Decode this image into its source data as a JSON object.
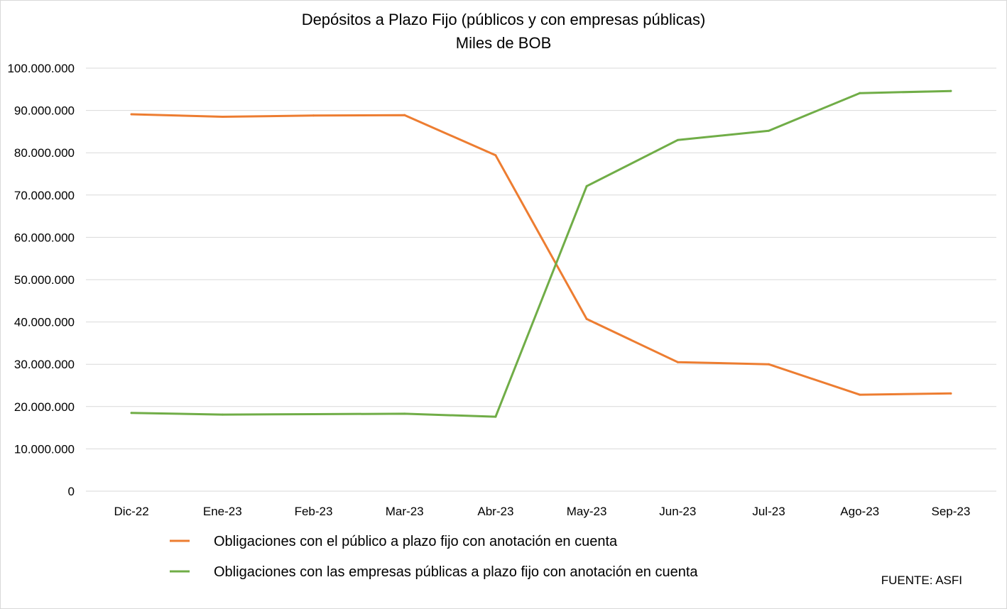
{
  "chart_data": {
    "type": "line",
    "title": "Depósitos a Plazo Fijo (públicos y con empresas públicas)",
    "subtitle": "Miles de BOB",
    "categories": [
      "Dic-22",
      "Ene-23",
      "Feb-23",
      "Mar-23",
      "Abr-23",
      "May-23",
      "Jun-23",
      "Jul-23",
      "Ago-23",
      "Sep-23"
    ],
    "ylim": [
      0,
      100000000
    ],
    "yticks": [
      0,
      10000000,
      20000000,
      30000000,
      40000000,
      50000000,
      60000000,
      70000000,
      80000000,
      90000000,
      100000000
    ],
    "ytick_labels": [
      "0",
      "10.000.000",
      "20.000.000",
      "30.000.000",
      "40.000.000",
      "50.000.000",
      "60.000.000",
      "70.000.000",
      "80.000.000",
      "90.000.000",
      "100.000.000"
    ],
    "grid": true,
    "legend_position": "bottom",
    "series": [
      {
        "name": "Obligaciones con el público a plazo fijo con anotación en cuenta",
        "color": "#ED7D31",
        "values": [
          89100000,
          88500000,
          88800000,
          88900000,
          79400000,
          40700000,
          30500000,
          30000000,
          22800000,
          23100000
        ]
      },
      {
        "name": "Obligaciones con las empresas públicas a plazo fijo con anotación en cuenta",
        "color": "#70AD47",
        "values": [
          18500000,
          18100000,
          18200000,
          18300000,
          17600000,
          72100000,
          83000000,
          85200000,
          94100000,
          94600000
        ]
      }
    ],
    "source_note": "FUENTE: ASFI"
  }
}
